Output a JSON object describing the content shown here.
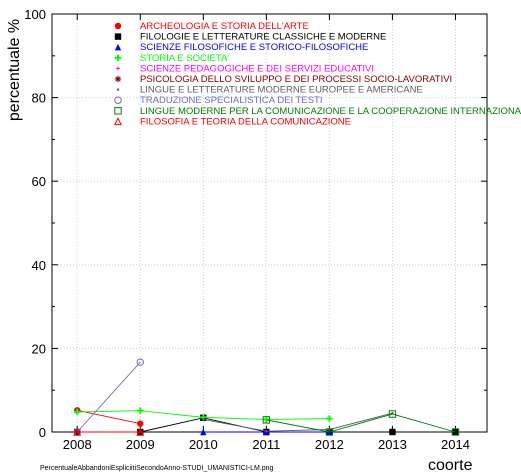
{
  "chart_data": {
    "type": "line",
    "title": "",
    "xlabel": "coorte",
    "ylabel": "percentuale %",
    "xlim": [
      2007.6,
      2014.5
    ],
    "ylim": [
      0,
      100
    ],
    "x_ticks": [
      "2008",
      "2009",
      "2010",
      "2011",
      "2012",
      "2013",
      "2014"
    ],
    "y_ticks": [
      "0",
      "20",
      "40",
      "60",
      "80",
      "100"
    ],
    "grid": true,
    "legend_position": "top",
    "series": [
      {
        "name": "ARCHEOLOGIA E STORIA DELL'ARTE",
        "color": "#ff0000",
        "marker": "filled-circle",
        "points": [
          [
            2008,
            5.2
          ],
          [
            2009,
            2.0
          ]
        ]
      },
      {
        "name": "FILOLOGIE E LETTERATURE CLASSICHE E MODERNE",
        "color": "#000000",
        "marker": "filled-square",
        "points": [
          [
            2008,
            0
          ],
          [
            2009,
            0
          ],
          [
            2010,
            3.4
          ],
          [
            2011,
            0
          ],
          [
            2012,
            0
          ],
          [
            2013,
            0
          ],
          [
            2014,
            0
          ]
        ]
      },
      {
        "name": "SCIENZE FILOSOFICHE E STORICO-FILOSOFICHE",
        "color": "#0000ff",
        "marker": "filled-triangle",
        "points": [
          [
            2010,
            0
          ],
          [
            2011,
            0
          ],
          [
            2012,
            0
          ]
        ]
      },
      {
        "name": "STORIA E SOCIETA'",
        "color": "#00ff00",
        "marker": "plus",
        "points": [
          [
            2008,
            4.8
          ],
          [
            2009,
            5.1
          ],
          [
            2010,
            3.5
          ],
          [
            2011,
            3.0
          ],
          [
            2012,
            3.2
          ]
        ]
      },
      {
        "name": "SCIENZE PEDAGOGICHE E DEI SERVIZI EDUCATIVI",
        "color": "#ff00ff",
        "marker": "star",
        "points": [
          [
            2008,
            0
          ],
          [
            2009,
            0
          ]
        ]
      },
      {
        "name": "PSICOLOGIA DELLO SVILUPPO E DEI PROCESSI SOCIO-LAVORATIVI",
        "color": "#800000",
        "marker": "asterisk",
        "points": [
          [
            2008,
            0
          ],
          [
            2009,
            0
          ]
        ]
      },
      {
        "name": "LINGUE E LETTERATURE MODERNE EUROPEE E AMERICANE",
        "color": "#606060",
        "marker": "dot",
        "points": [
          [
            2010,
            3.0
          ],
          [
            2011,
            0.2
          ],
          [
            2012,
            0.6
          ],
          [
            2013,
            4.5
          ]
        ]
      },
      {
        "name": "TRADUZIONE SPECIALISTICA DEI TESTI",
        "color": "#6a6ad0",
        "marker": "open-circle",
        "points": [
          [
            2008,
            0
          ],
          [
            2009,
            16.7
          ]
        ]
      },
      {
        "name": "LINGUE MODERNE PER LA COMUNICAZIONE E LA COOPERAZIONE INTERNAZIONALE",
        "color": "#008000",
        "marker": "open-square",
        "points": [
          [
            2011,
            2.9
          ],
          [
            2012,
            0
          ],
          [
            2013,
            4.3
          ],
          [
            2014,
            0
          ]
        ]
      },
      {
        "name": "FILOSOFIA E TEORIA DELLA COMUNICAZIONE",
        "color": "#ff0000",
        "marker": "open-triangle",
        "points": [
          [
            2008,
            0
          ],
          [
            2009,
            0
          ]
        ]
      }
    ]
  },
  "footer": {
    "filename": "PercentualeAbbandoniEspliciitiSecondoAnno-STUDI_UMANISTICI-LM.png"
  }
}
